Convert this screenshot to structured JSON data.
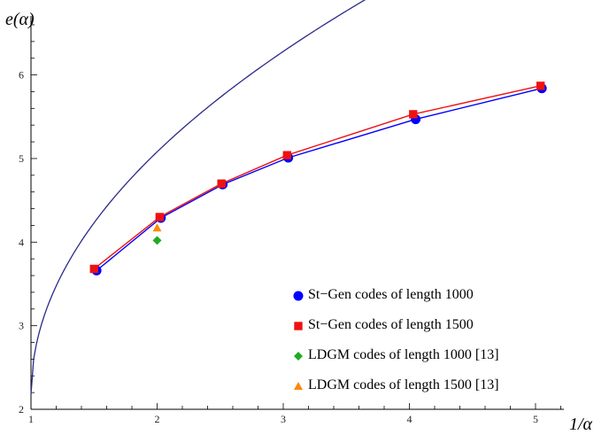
{
  "chart_data": {
    "type": "line",
    "xlabel": "1/α",
    "ylabel": "e(α)",
    "xlim": [
      1,
      5.25
    ],
    "ylim": [
      2,
      6.6
    ],
    "x_ticks": [
      1,
      2,
      3,
      4,
      5
    ],
    "y_ticks": [
      2,
      3,
      4,
      5,
      6
    ],
    "legend_position": "bottom-right",
    "grid": false,
    "reference_curve": {
      "color": "#2a2a88",
      "description_for_drawing": "e = 2.18 + 2.9*sqrt(x-1)"
    },
    "series": [
      {
        "name": "St−Gen codes of length 1000",
        "marker": "circle",
        "color": "#0000ff",
        "line": true,
        "x": [
          1.52,
          2.03,
          2.52,
          3.04,
          4.05,
          5.05
        ],
        "y": [
          3.66,
          4.29,
          4.69,
          5.01,
          5.47,
          5.84
        ]
      },
      {
        "name": "St−Gen codes of length 1500",
        "marker": "square",
        "color": "#ee1111",
        "line": true,
        "x": [
          1.5,
          2.02,
          2.51,
          3.03,
          4.03,
          5.04
        ],
        "y": [
          3.68,
          4.3,
          4.7,
          5.04,
          5.53,
          5.87
        ]
      },
      {
        "name": "LDGM codes of length 1000 [13]",
        "marker": "diamond",
        "color": "#22aa22",
        "line": false,
        "x": [
          2.0
        ],
        "y": [
          4.02
        ]
      },
      {
        "name": "LDGM codes of length 1500 [13]",
        "marker": "triangle",
        "color": "#ff8800",
        "line": false,
        "x": [
          2.0
        ],
        "y": [
          4.17
        ]
      }
    ]
  }
}
